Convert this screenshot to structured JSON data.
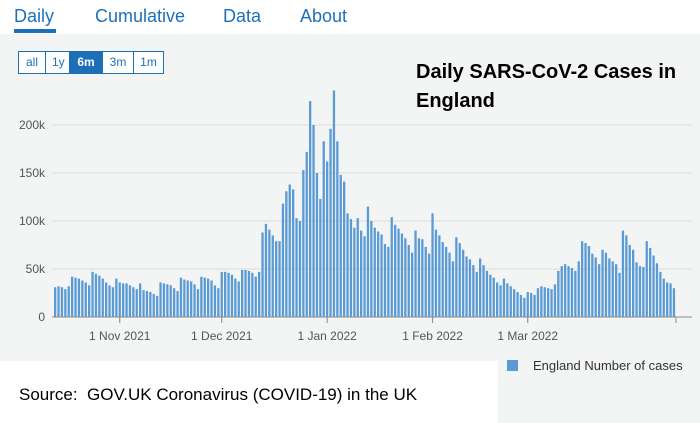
{
  "nav": {
    "tabs": [
      {
        "label": "Daily",
        "active": true
      },
      {
        "label": "Cumulative",
        "active": false
      },
      {
        "label": "Data",
        "active": false
      },
      {
        "label": "About",
        "active": false
      }
    ],
    "accent_color": "#1d70b8"
  },
  "range_buttons": [
    {
      "label": "all",
      "active": false
    },
    {
      "label": "1y",
      "active": false
    },
    {
      "label": "6m",
      "active": true
    },
    {
      "label": "3m",
      "active": false
    },
    {
      "label": "1m",
      "active": false
    }
  ],
  "source": "Source:  GOV.UK Coronavirus (COVID-19) in the UK",
  "chart_data": {
    "type": "bar",
    "title": "Daily SARS-CoV-2 Cases in England",
    "xlabel": "",
    "ylabel": "",
    "ylim": [
      0,
      250000
    ],
    "y_ticks": [
      {
        "value": 0,
        "label": "0"
      },
      {
        "value": 50000,
        "label": "50k"
      },
      {
        "value": 100000,
        "label": "100k"
      },
      {
        "value": 150000,
        "label": "150k"
      },
      {
        "value": 200000,
        "label": "200k"
      }
    ],
    "x_ticks": [
      {
        "index": 19,
        "label": "1 Nov 2021"
      },
      {
        "index": 49,
        "label": "1 Dec 2021"
      },
      {
        "index": 80,
        "label": "1 Jan 2022"
      },
      {
        "index": 111,
        "label": "1 Feb 2022"
      },
      {
        "index": 139,
        "label": "1 Mar 2022"
      }
    ],
    "grid": true,
    "legend": {
      "position": "bottom-right"
    },
    "bar_color": "#5b9bd5",
    "series": [
      {
        "name": "England Number of cases",
        "values": [
          31000,
          32000,
          31000,
          29000,
          32000,
          42000,
          41000,
          40000,
          38000,
          36000,
          33000,
          47000,
          45000,
          43000,
          40000,
          36000,
          33000,
          31000,
          40000,
          36000,
          35000,
          35000,
          33000,
          31000,
          29000,
          35000,
          28000,
          27000,
          26000,
          24000,
          22000,
          36000,
          35000,
          34000,
          33000,
          30000,
          27000,
          41000,
          39000,
          38000,
          37000,
          34000,
          29000,
          42000,
          41000,
          40000,
          38000,
          33000,
          30000,
          47000,
          47000,
          46000,
          44000,
          40000,
          37000,
          49000,
          49000,
          48000,
          46000,
          42000,
          47000,
          88000,
          97000,
          91000,
          85000,
          79000,
          79000,
          118000,
          131000,
          138000,
          133000,
          103000,
          100000,
          153000,
          172000,
          225000,
          200000,
          150000,
          123000,
          183000,
          162000,
          196000,
          236000,
          183000,
          148000,
          141000,
          108000,
          102000,
          93000,
          103000,
          90000,
          84000,
          115000,
          100000,
          93000,
          89000,
          86000,
          76000,
          73000,
          104000,
          96000,
          92000,
          87000,
          82000,
          75000,
          67000,
          90000,
          82000,
          81000,
          73000,
          66000,
          108000,
          91000,
          85000,
          78000,
          73000,
          67000,
          58000,
          83000,
          77000,
          70000,
          63000,
          60000,
          54000,
          47000,
          61000,
          54000,
          48000,
          44000,
          41000,
          36000,
          33000,
          40000,
          35000,
          32000,
          29000,
          26000,
          23000,
          20000,
          26000,
          25000,
          23000,
          30000,
          32000,
          31000,
          30000,
          29000,
          34000,
          48000,
          53000,
          55000,
          53000,
          51000,
          48000,
          58000,
          79000,
          77000,
          74000,
          66000,
          62000,
          55000,
          70000,
          67000,
          61000,
          58000,
          55000,
          46000,
          90000,
          85000,
          75000,
          70000,
          57000,
          53000,
          52000,
          79000,
          72000,
          64000,
          56000,
          47000,
          40000,
          36000,
          35000,
          30000
        ]
      }
    ]
  }
}
